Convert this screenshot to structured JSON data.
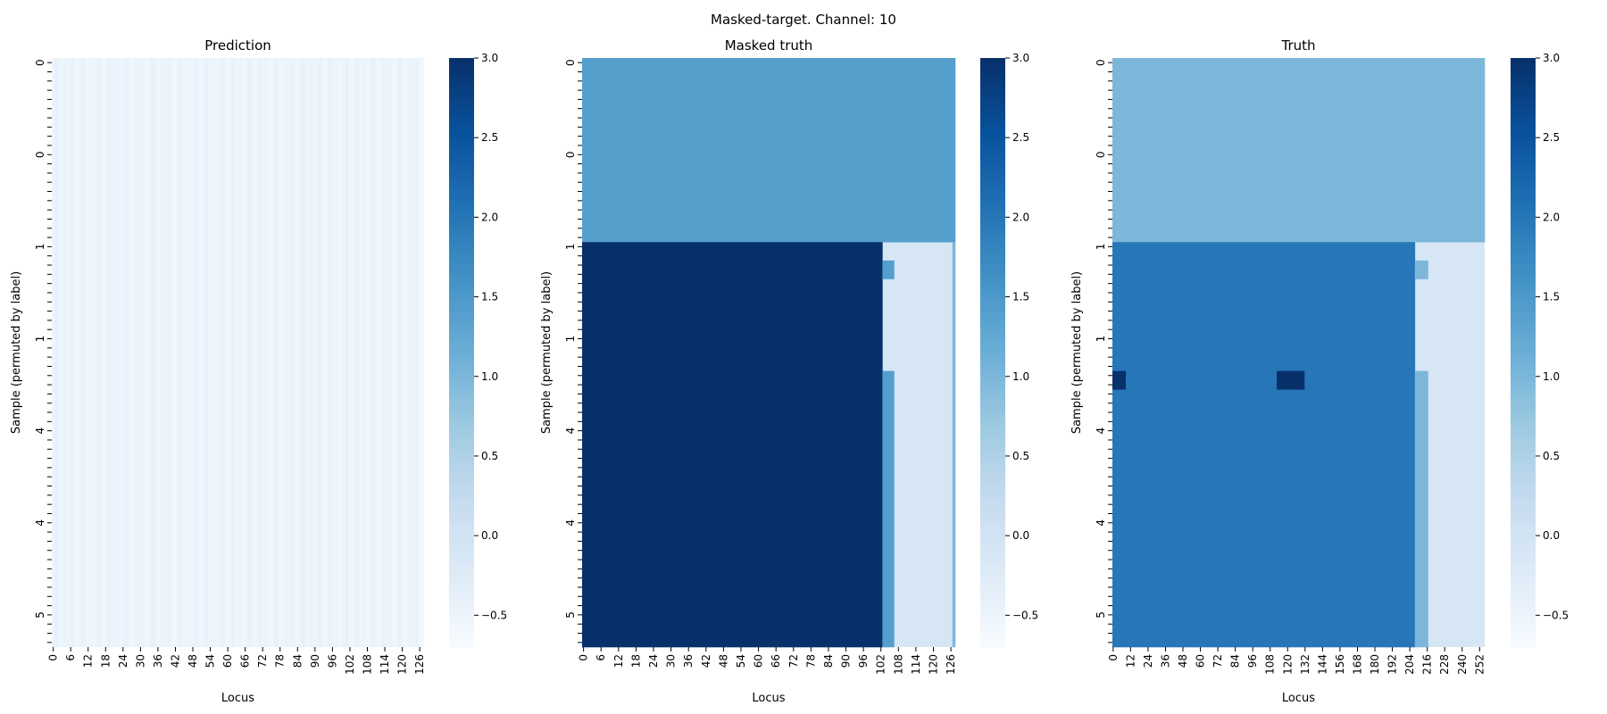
{
  "figure_title": "Masked-target. Channel: 10",
  "colorbar": {
    "ticks": [
      "3.0",
      "2.5",
      "2.0",
      "1.5",
      "1.0",
      "0.5",
      "0.0",
      "−0.5"
    ],
    "vmin": -0.7,
    "vmax": 3.0,
    "colormap": "Blues"
  },
  "chart_data": [
    {
      "type": "heatmap",
      "title": "Prediction",
      "xlabel": "Locus",
      "ylabel": "Sample (permuted by label)",
      "n_rows": 64,
      "n_cols": 128,
      "x_tick_labels": [
        "0",
        "6",
        "12",
        "18",
        "24",
        "30",
        "36",
        "42",
        "48",
        "54",
        "60",
        "66",
        "72",
        "78",
        "84",
        "90",
        "96",
        "102",
        "108",
        "114",
        "120",
        "126"
      ],
      "y_tick_labels": [
        "0",
        "0",
        "1",
        "1",
        "4",
        "4",
        "5"
      ],
      "cells": {
        "base_value": -0.5,
        "column_variation": "stripes between -0.6 and -0.4"
      }
    },
    {
      "type": "heatmap",
      "title": "Masked truth",
      "xlabel": "Locus",
      "ylabel": "Sample (permuted by label)",
      "n_rows": 64,
      "n_cols": 128,
      "x_tick_labels": [
        "0",
        "6",
        "12",
        "18",
        "24",
        "30",
        "36",
        "42",
        "48",
        "54",
        "60",
        "66",
        "72",
        "78",
        "84",
        "90",
        "96",
        "102",
        "108",
        "114",
        "120",
        "126"
      ],
      "y_tick_labels": [
        "0",
        "0",
        "1",
        "1",
        "4",
        "4",
        "5"
      ],
      "cells": {
        "background": -0.1,
        "regions": [
          {
            "rows": [
              0,
              20
            ],
            "cols": [
              0,
              128
            ],
            "value": 1.4
          },
          {
            "rows": [
              20,
              64
            ],
            "cols": [
              0,
              103
            ],
            "value": 3.0
          },
          {
            "rows": [
              22,
              24
            ],
            "cols": [
              103,
              107
            ],
            "value": 1.4
          },
          {
            "rows": [
              34,
              64
            ],
            "cols": [
              103,
              107
            ],
            "value": 1.4
          },
          {
            "rows": [
              20,
              64
            ],
            "cols": [
              127,
              128
            ],
            "value": 1.0
          }
        ]
      }
    },
    {
      "type": "heatmap",
      "title": "Truth",
      "xlabel": "Locus",
      "ylabel": "Sample (permuted by label)",
      "n_rows": 64,
      "n_cols": 256,
      "x_tick_labels": [
        "0",
        "12",
        "24",
        "36",
        "48",
        "60",
        "72",
        "84",
        "96",
        "108",
        "120",
        "132",
        "144",
        "156",
        "168",
        "180",
        "192",
        "204",
        "216",
        "228",
        "240",
        "252"
      ],
      "y_tick_labels": [
        "0",
        "0",
        "1",
        "1",
        "4",
        "4",
        "5"
      ],
      "cells": {
        "background": -0.1,
        "regions": [
          {
            "rows": [
              0,
              20
            ],
            "cols": [
              0,
              256
            ],
            "value": 1.0
          },
          {
            "rows": [
              20,
              64
            ],
            "cols": [
              0,
              208
            ],
            "value": 2.0
          },
          {
            "rows": [
              22,
              24
            ],
            "cols": [
              208,
              217
            ],
            "value": 1.0
          },
          {
            "rows": [
              34,
              64
            ],
            "cols": [
              208,
              217
            ],
            "value": 1.0
          },
          {
            "rows": [
              34,
              36
            ],
            "cols": [
              0,
              9
            ],
            "value": 3.0
          },
          {
            "rows": [
              34,
              36
            ],
            "cols": [
              113,
              132
            ],
            "value": 3.0
          }
        ]
      }
    }
  ]
}
